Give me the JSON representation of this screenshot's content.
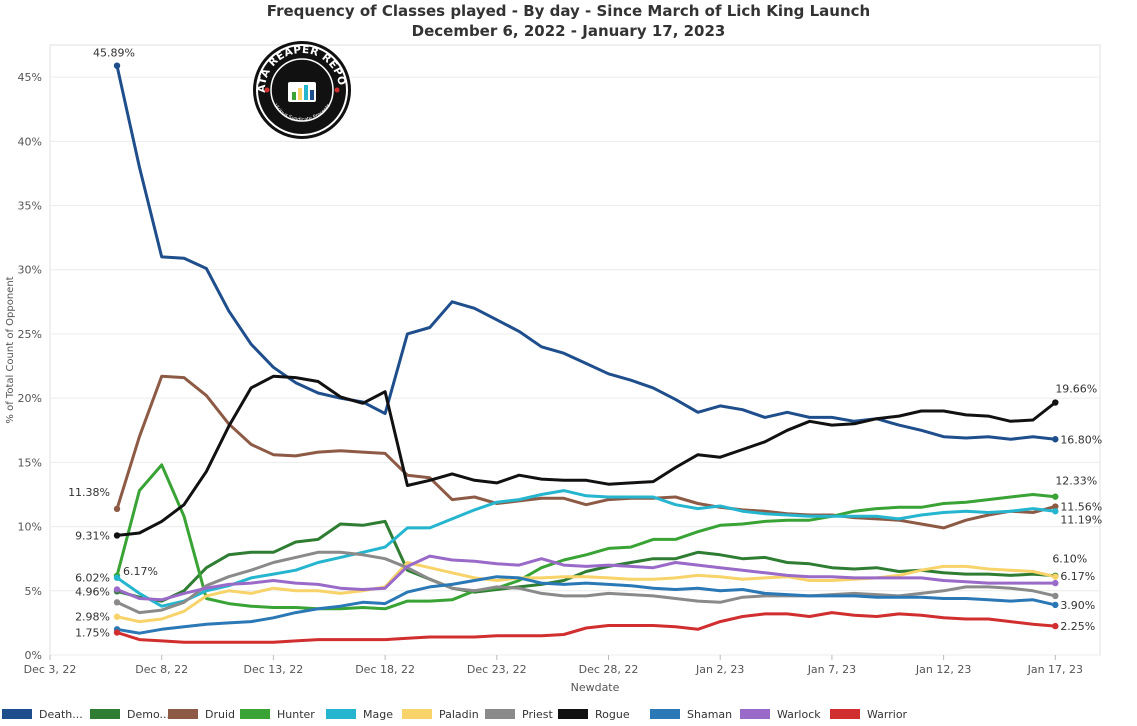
{
  "title": "Frequency of Classes played - By day - Since March of Lich King Launch",
  "subtitle": "December 6, 2022 - January 17, 2023",
  "logo": {
    "text": "DATA REAPER REPORT",
    "subtext": "Vicious Syndicate Presents"
  },
  "chart_data": {
    "type": "line",
    "xlabel": "Newdate",
    "ylabel": "% of Total Count of Opponent",
    "x_ticks": [
      "Dec 3, 22",
      "Dec 8, 22",
      "Dec 13, 22",
      "Dec 18, 22",
      "Dec 23, 22",
      "Dec 28, 22",
      "Jan 2, 23",
      "Jan 7, 23",
      "Jan 12, 23",
      "Jan 17, 23"
    ],
    "y_ticks": [
      "0%",
      "5%",
      "10%",
      "15%",
      "20%",
      "25%",
      "30%",
      "35%",
      "40%",
      "45%"
    ],
    "ylim": [
      0,
      47.5
    ],
    "x_start": "2022-12-06",
    "x_end": "2023-01-17",
    "grid": true,
    "legend_position": "bottom",
    "series": [
      {
        "name": "Death...",
        "color": "#1f4e8c",
        "values": [
          45.89,
          38.0,
          31.0,
          30.9,
          30.1,
          26.8,
          24.2,
          22.4,
          21.2,
          20.4,
          20.0,
          19.7,
          18.8,
          25.0,
          25.5,
          27.5,
          27.0,
          26.1,
          25.2,
          24.0,
          23.5,
          22.7,
          21.9,
          21.4,
          20.8,
          19.9,
          18.9,
          19.4,
          19.1,
          18.5,
          18.9,
          18.5,
          18.5,
          18.2,
          18.4,
          17.9,
          17.5,
          17.0,
          16.9,
          17.0,
          16.8,
          17.0,
          16.8
        ],
        "label_first": "45.89%",
        "label_last": "16.80%"
      },
      {
        "name": "Demo...",
        "color": "#2e7d32",
        "values": [
          4.96,
          4.5,
          4.2,
          5.0,
          6.8,
          7.8,
          8.0,
          8.0,
          8.8,
          9.0,
          10.2,
          10.1,
          10.4,
          6.6,
          5.9,
          5.2,
          4.9,
          5.1,
          5.3,
          5.5,
          5.8,
          6.5,
          6.9,
          7.2,
          7.5,
          7.5,
          8.0,
          7.8,
          7.5,
          7.6,
          7.2,
          7.1,
          6.8,
          6.7,
          6.8,
          6.5,
          6.6,
          6.4,
          6.3,
          6.3,
          6.2,
          6.3,
          6.17
        ],
        "label_first": "4.96%",
        "label_last": "6.17%"
      },
      {
        "name": "Druid",
        "color": "#8d5a45",
        "values": [
          11.38,
          17.0,
          21.7,
          21.6,
          20.2,
          18.0,
          16.4,
          15.6,
          15.5,
          15.8,
          15.9,
          15.8,
          15.7,
          14.0,
          13.8,
          12.1,
          12.3,
          11.8,
          12.0,
          12.2,
          12.2,
          11.7,
          12.1,
          12.2,
          12.2,
          12.3,
          11.8,
          11.5,
          11.3,
          11.2,
          11.0,
          10.9,
          10.9,
          10.7,
          10.6,
          10.5,
          10.2,
          9.9,
          10.5,
          10.9,
          11.2,
          11.1,
          11.56
        ],
        "label_first": "11.38%",
        "label_last": "11.56%"
      },
      {
        "name": "Hunter",
        "color": "#3aa335",
        "values": [
          6.17,
          12.8,
          14.8,
          10.8,
          4.4,
          4.0,
          3.8,
          3.7,
          3.7,
          3.6,
          3.6,
          3.7,
          3.6,
          4.2,
          4.2,
          4.3,
          5.0,
          5.2,
          5.8,
          6.8,
          7.4,
          7.8,
          8.3,
          8.4,
          9.0,
          9.0,
          9.6,
          10.1,
          10.2,
          10.4,
          10.5,
          10.5,
          10.8,
          11.2,
          11.4,
          11.5,
          11.5,
          11.8,
          11.9,
          12.1,
          12.3,
          12.5,
          12.33
        ],
        "label_first": "6.17%",
        "label_last": "12.33%"
      },
      {
        "name": "Mage",
        "color": "#26b5cf",
        "values": [
          6.02,
          4.8,
          3.8,
          4.2,
          5.0,
          5.4,
          6.0,
          6.3,
          6.6,
          7.2,
          7.6,
          8.0,
          8.4,
          9.9,
          9.9,
          10.6,
          11.3,
          11.9,
          12.1,
          12.5,
          12.8,
          12.4,
          12.3,
          12.3,
          12.3,
          11.7,
          11.4,
          11.6,
          11.2,
          11.0,
          10.9,
          10.8,
          10.8,
          10.8,
          10.8,
          10.6,
          10.9,
          11.1,
          11.2,
          11.1,
          11.2,
          11.4,
          11.19
        ],
        "label_first": "6.02%",
        "label_last": "11.19%"
      },
      {
        "name": "Paladin",
        "color": "#f7d36a",
        "values": [
          2.98,
          2.6,
          2.8,
          3.4,
          4.6,
          5.0,
          4.8,
          5.2,
          5.0,
          5.0,
          4.8,
          5.0,
          5.3,
          7.2,
          6.8,
          6.4,
          6.0,
          5.8,
          6.0,
          6.0,
          6.1,
          6.1,
          6.0,
          5.9,
          5.9,
          6.0,
          6.2,
          6.1,
          5.9,
          6.0,
          6.1,
          5.8,
          5.8,
          5.9,
          6.0,
          6.2,
          6.6,
          6.9,
          6.9,
          6.7,
          6.6,
          6.5,
          6.1
        ],
        "label_first": "2.98%",
        "label_last": "6.10%"
      },
      {
        "name": "Priest",
        "color": "#8a8a8a",
        "values": [
          4.1,
          3.3,
          3.5,
          4.1,
          5.4,
          6.1,
          6.6,
          7.2,
          7.6,
          8.0,
          8.0,
          7.8,
          7.5,
          6.8,
          5.9,
          5.2,
          5.0,
          5.3,
          5.2,
          4.8,
          4.6,
          4.6,
          4.8,
          4.7,
          4.6,
          4.4,
          4.2,
          4.1,
          4.5,
          4.6,
          4.6,
          4.6,
          4.7,
          4.8,
          4.7,
          4.6,
          4.8,
          5.0,
          5.3,
          5.3,
          5.2,
          5.0,
          4.6
        ],
        "label_first": "",
        "label_last": ""
      },
      {
        "name": "Rogue",
        "color": "#111111",
        "values": [
          9.31,
          9.5,
          10.4,
          11.7,
          14.3,
          17.8,
          20.8,
          21.7,
          21.6,
          21.3,
          20.1,
          19.6,
          20.5,
          13.2,
          13.6,
          14.1,
          13.6,
          13.4,
          14.0,
          13.7,
          13.6,
          13.6,
          13.3,
          13.4,
          13.5,
          14.6,
          15.6,
          15.4,
          16.0,
          16.6,
          17.5,
          18.2,
          17.9,
          18.0,
          18.4,
          18.6,
          19.0,
          19.0,
          18.7,
          18.6,
          18.2,
          18.3,
          19.66
        ],
        "label_first": "9.31%",
        "label_last": "19.66%"
      },
      {
        "name": "Shaman",
        "color": "#2a78b5",
        "values": [
          2.0,
          1.7,
          2.0,
          2.2,
          2.4,
          2.5,
          2.6,
          2.9,
          3.3,
          3.6,
          3.8,
          4.1,
          4.0,
          4.9,
          5.3,
          5.5,
          5.8,
          6.1,
          6.0,
          5.6,
          5.5,
          5.6,
          5.5,
          5.4,
          5.2,
          5.1,
          5.2,
          5.0,
          5.1,
          4.8,
          4.7,
          4.6,
          4.6,
          4.6,
          4.5,
          4.5,
          4.5,
          4.4,
          4.4,
          4.3,
          4.2,
          4.3,
          3.9
        ],
        "label_first": "",
        "label_last": "3.90%"
      },
      {
        "name": "Warlock",
        "color": "#9a6ac9",
        "values": [
          5.1,
          4.4,
          4.3,
          4.8,
          5.2,
          5.5,
          5.6,
          5.8,
          5.6,
          5.5,
          5.2,
          5.1,
          5.2,
          6.9,
          7.7,
          7.4,
          7.3,
          7.1,
          7.0,
          7.5,
          7.0,
          6.9,
          7.0,
          6.9,
          6.8,
          7.2,
          7.0,
          6.8,
          6.6,
          6.4,
          6.2,
          6.1,
          6.1,
          6.0,
          6.0,
          6.0,
          6.0,
          5.8,
          5.7,
          5.6,
          5.6,
          5.6,
          5.6
        ],
        "label_first": "",
        "label_last": ""
      },
      {
        "name": "Warrior",
        "color": "#d12f2f",
        "values": [
          1.75,
          1.2,
          1.1,
          1.0,
          1.0,
          1.0,
          1.0,
          1.0,
          1.1,
          1.2,
          1.2,
          1.2,
          1.2,
          1.3,
          1.4,
          1.4,
          1.4,
          1.5,
          1.5,
          1.5,
          1.6,
          2.1,
          2.3,
          2.3,
          2.3,
          2.2,
          2.0,
          2.6,
          3.0,
          3.2,
          3.2,
          3.0,
          3.3,
          3.1,
          3.0,
          3.2,
          3.1,
          2.9,
          2.8,
          2.8,
          2.6,
          2.4,
          2.25
        ],
        "label_first": "1.75%",
        "label_last": "2.25%"
      }
    ]
  }
}
